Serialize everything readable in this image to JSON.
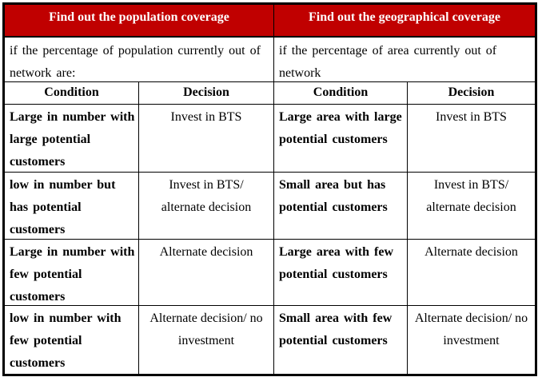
{
  "colors": {
    "header_bg": "#c00000",
    "header_text": "#ffffff",
    "body_text": "#000000",
    "border": "#000000",
    "page_bg": "#ffffff"
  },
  "sections": {
    "population": {
      "title": "Find out the population coverage",
      "intro": "if the percentage of population currently out of\nnetwork are:"
    },
    "geographical": {
      "title": "Find out the geographical coverage",
      "intro": "if the percentage of area currently out of network\nare:"
    }
  },
  "column_headers": {
    "condition": "Condition",
    "decision": "Decision"
  },
  "rows": [
    {
      "pop_condition": "Large in number with\nlarge potential\ncustomers",
      "pop_decision": "Invest in BTS",
      "geo_condition": "Large area with large\npotential customers",
      "geo_decision": "Invest in BTS"
    },
    {
      "pop_condition": "low in number but\nhas potential\ncustomers",
      "pop_decision": "Invest in BTS/\nalternate decision",
      "geo_condition": "Small area but has\npotential customers",
      "geo_decision": "Invest in BTS/\nalternate decision"
    },
    {
      "pop_condition": "Large in number with\nfew potential\ncustomers",
      "pop_decision": "Alternate decision",
      "geo_condition": "Large area with few\npotential customers",
      "geo_decision": "Alternate decision"
    },
    {
      "pop_condition": "low in number with\nfew potential\ncustomers",
      "pop_decision": "Alternate decision/ no\ninvestment",
      "geo_condition": "Small area with few\npotential customers",
      "geo_decision": "Alternate decision/ no\ninvestment"
    }
  ]
}
